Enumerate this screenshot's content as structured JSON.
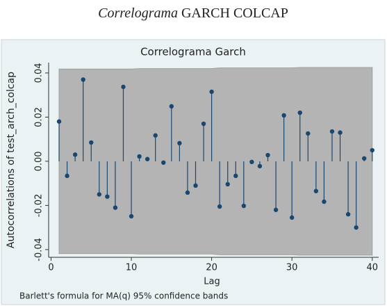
{
  "caption": {
    "italic": "Correlograma",
    "text": "GARCH COLCAP"
  },
  "chart_data": {
    "type": "stem",
    "title": "Correlograma Garch",
    "x_label": "Lag",
    "y_label": "Autocorrelations of test_arch_colcap",
    "note": "Barlett's formula for MA(q) 95% confidence bands",
    "x": [
      1,
      2,
      3,
      4,
      5,
      6,
      7,
      8,
      9,
      10,
      11,
      12,
      13,
      14,
      15,
      16,
      17,
      18,
      19,
      20,
      21,
      22,
      23,
      24,
      25,
      26,
      27,
      28,
      29,
      30,
      31,
      32,
      33,
      34,
      35,
      36,
      37,
      38,
      39,
      40
    ],
    "values": [
      0.018,
      -0.0066,
      0.003,
      0.037,
      0.0085,
      -0.015,
      -0.016,
      -0.021,
      0.0337,
      -0.0249,
      0.0022,
      0.001,
      0.0117,
      -0.0006,
      0.0249,
      0.0082,
      -0.0142,
      -0.011,
      0.017,
      0.0315,
      -0.0205,
      -0.0104,
      -0.0066,
      -0.0202,
      -0.0003,
      -0.0022,
      0.0028,
      -0.022,
      0.0208,
      -0.0255,
      0.022,
      0.0126,
      -0.0135,
      -0.0183,
      0.0135,
      0.013,
      -0.024,
      -0.03,
      0.0013,
      0.005
    ],
    "ci_upper": [
      0.0418,
      0.0418,
      0.0418,
      0.0418,
      0.0418,
      0.0418,
      0.0418,
      0.0418,
      0.0418,
      0.0418,
      0.042,
      0.042,
      0.042,
      0.042,
      0.042,
      0.042,
      0.042,
      0.042,
      0.042,
      0.042,
      0.0423,
      0.0423,
      0.0423,
      0.0423,
      0.0423,
      0.0423,
      0.0423,
      0.0423,
      0.0423,
      0.0423,
      0.0425,
      0.0425,
      0.0425,
      0.0425,
      0.0425,
      0.0425,
      0.0425,
      0.0425,
      0.0425,
      0.0425
    ],
    "ci_lower": [
      -0.0418,
      -0.0418,
      -0.0418,
      -0.0418,
      -0.0418,
      -0.0418,
      -0.0418,
      -0.0418,
      -0.0418,
      -0.0418,
      -0.042,
      -0.042,
      -0.042,
      -0.042,
      -0.042,
      -0.042,
      -0.042,
      -0.042,
      -0.042,
      -0.042,
      -0.0423,
      -0.0423,
      -0.0423,
      -0.0423,
      -0.0423,
      -0.0423,
      -0.0423,
      -0.0423,
      -0.0423,
      -0.0423,
      -0.0425,
      -0.0425,
      -0.0425,
      -0.0425,
      -0.0425,
      -0.0425,
      -0.0425,
      -0.0425,
      -0.0425,
      -0.0425
    ],
    "color": "#1a476f",
    "band_color": "#b4b4b4",
    "xlim": [
      -0.3,
      40.8
    ],
    "ylim": [
      -0.0435,
      0.0447
    ],
    "xticks": [
      0,
      10,
      20,
      30,
      40
    ],
    "yticks": [
      -0.04,
      -0.02,
      {
        "value": 0,
        "label": "0.00"
      },
      0.02,
      0.04
    ]
  }
}
